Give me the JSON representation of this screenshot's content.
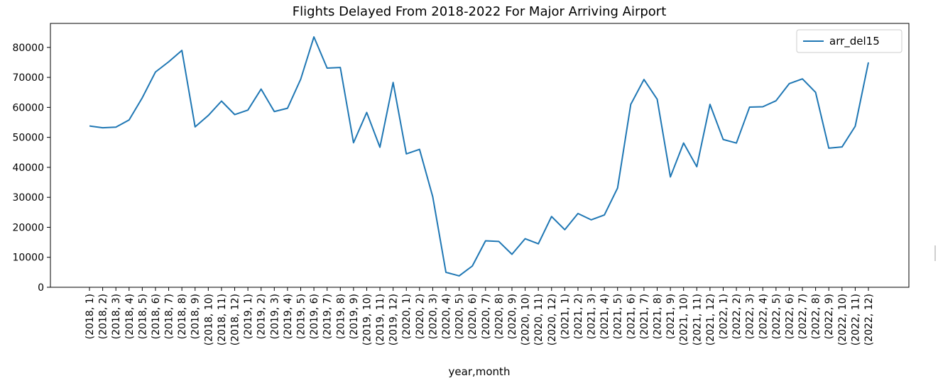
{
  "chart_data": {
    "type": "line",
    "title": "Flights Delayed From 2018-2022 For Major Arriving Airport",
    "xlabel": "year,month",
    "ylabel": "",
    "ylim": [
      0,
      88000
    ],
    "yticks": [
      "0",
      "10000",
      "20000",
      "30000",
      "40000",
      "50000",
      "60000",
      "70000",
      "80000"
    ],
    "ytick_values": [
      0,
      10000,
      20000,
      30000,
      40000,
      50000,
      60000,
      70000,
      80000
    ],
    "grid": false,
    "legend_position": "top-right",
    "categories": [
      "(2018, 1)",
      "(2018, 2)",
      "(2018, 3)",
      "(2018, 4)",
      "(2018, 5)",
      "(2018, 6)",
      "(2018, 7)",
      "(2018, 8)",
      "(2018, 9)",
      "(2018, 10)",
      "(2018, 11)",
      "(2018, 12)",
      "(2019, 1)",
      "(2019, 2)",
      "(2019, 3)",
      "(2019, 4)",
      "(2019, 5)",
      "(2019, 6)",
      "(2019, 7)",
      "(2019, 8)",
      "(2019, 9)",
      "(2019, 10)",
      "(2019, 11)",
      "(2019, 12)",
      "(2020, 1)",
      "(2020, 2)",
      "(2020, 3)",
      "(2020, 4)",
      "(2020, 5)",
      "(2020, 6)",
      "(2020, 7)",
      "(2020, 8)",
      "(2020, 9)",
      "(2020, 10)",
      "(2020, 11)",
      "(2020, 12)",
      "(2021, 1)",
      "(2021, 2)",
      "(2021, 3)",
      "(2021, 4)",
      "(2021, 5)",
      "(2021, 6)",
      "(2021, 7)",
      "(2021, 8)",
      "(2021, 9)",
      "(2021, 10)",
      "(2021, 11)",
      "(2021, 12)",
      "(2022, 1)",
      "(2022, 2)",
      "(2022, 3)",
      "(2022, 4)",
      "(2022, 5)",
      "(2022, 6)",
      "(2022, 7)",
      "(2022, 8)",
      "(2022, 9)",
      "(2022, 10)",
      "(2022, 11)",
      "(2022, 12)"
    ],
    "series": [
      {
        "name": "arr_del15",
        "color": "#1f77b4",
        "values": [
          53800,
          53200,
          53400,
          55800,
          63200,
          71800,
          75200,
          79000,
          53500,
          57300,
          62100,
          57600,
          59100,
          66100,
          58600,
          59700,
          69400,
          83500,
          73100,
          73300,
          48200,
          58300,
          46700,
          68300,
          44500,
          46000,
          30200,
          5000,
          3800,
          7100,
          15500,
          15300,
          11000,
          16200,
          14500,
          23600,
          19200,
          24600,
          22500,
          24100,
          33100,
          61000,
          69300,
          62700,
          36800,
          48100,
          40200,
          61000,
          49300,
          48100,
          60100,
          60200,
          62200,
          67900,
          69500,
          65000,
          46400,
          46800,
          53700,
          75000
        ]
      }
    ]
  }
}
